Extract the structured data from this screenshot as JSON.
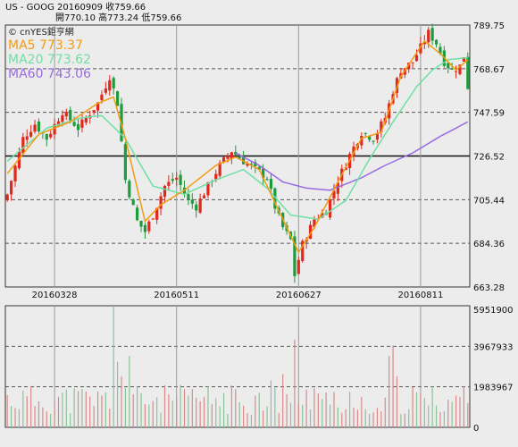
{
  "header": {
    "line1": "US - GOOG   20160909   收759.66",
    "line2": "開770.10   高773.24   低759.66",
    "logo": "© cnYES鉅亨網"
  },
  "legend": [
    {
      "label": "MA5 773.37",
      "color": "#f39c12"
    },
    {
      "label": "MA20 773.62",
      "color": "#6ee0a4"
    },
    {
      "label": "MA60 743.06",
      "color": "#9a6be0"
    }
  ],
  "colors": {
    "background": "#ececec",
    "up_candle": "#e0281c",
    "down_candle": "#1f9a3c",
    "volume_up": "#d98a8a",
    "volume_down": "#8cc29a",
    "grid_dashed": "#555555",
    "grid_light": "#9a9a9a"
  },
  "chart_data": [
    {
      "type": "candlestick",
      "title": "",
      "x_tick_labels": [
        "20160328",
        "20160511",
        "20160627",
        "20160811"
      ],
      "y_tick_labels": [
        "789.75",
        "768.67",
        "747.59",
        "726.52",
        "705.44",
        "684.36",
        "663.28"
      ],
      "ylim": [
        663.28,
        789.75
      ],
      "bar_count": 118,
      "x_tick_bar_index": [
        12,
        43,
        74,
        105
      ],
      "reference_line": 726.52,
      "series": [
        {
          "name": "MA5 773.37",
          "key": "ma5"
        },
        {
          "name": "MA20 773.62",
          "key": "ma20"
        },
        {
          "name": "MA60 743.06",
          "key": "ma60"
        }
      ],
      "candle_anchors": [
        {
          "i": 0,
          "c": 708
        },
        {
          "i": 4,
          "c": 735
        },
        {
          "i": 7,
          "c": 742
        },
        {
          "i": 10,
          "c": 735
        },
        {
          "i": 14,
          "c": 748
        },
        {
          "i": 18,
          "c": 740
        },
        {
          "i": 23,
          "c": 752
        },
        {
          "i": 26,
          "c": 765
        },
        {
          "i": 28,
          "c": 752
        },
        {
          "i": 30,
          "c": 715
        },
        {
          "i": 33,
          "c": 695
        },
        {
          "i": 35,
          "c": 690
        },
        {
          "i": 37,
          "c": 698
        },
        {
          "i": 40,
          "c": 712
        },
        {
          "i": 43,
          "c": 716
        },
        {
          "i": 46,
          "c": 705
        },
        {
          "i": 48,
          "c": 702
        },
        {
          "i": 51,
          "c": 712
        },
        {
          "i": 54,
          "c": 722
        },
        {
          "i": 57,
          "c": 729
        },
        {
          "i": 60,
          "c": 724
        },
        {
          "i": 63,
          "c": 720
        },
        {
          "i": 66,
          "c": 716
        },
        {
          "i": 68,
          "c": 702
        },
        {
          "i": 70,
          "c": 692
        },
        {
          "i": 72,
          "c": 686
        },
        {
          "i": 73,
          "c": 669
        },
        {
          "i": 75,
          "c": 684
        },
        {
          "i": 78,
          "c": 696
        },
        {
          "i": 81,
          "c": 700
        },
        {
          "i": 84,
          "c": 715
        },
        {
          "i": 87,
          "c": 727
        },
        {
          "i": 90,
          "c": 738
        },
        {
          "i": 93,
          "c": 735
        },
        {
          "i": 96,
          "c": 745
        },
        {
          "i": 98,
          "c": 758
        },
        {
          "i": 100,
          "c": 768
        },
        {
          "i": 103,
          "c": 772
        },
        {
          "i": 105,
          "c": 779
        },
        {
          "i": 107,
          "c": 786
        },
        {
          "i": 109,
          "c": 781
        },
        {
          "i": 111,
          "c": 772
        },
        {
          "i": 113,
          "c": 768
        },
        {
          "i": 115,
          "c": 770
        },
        {
          "i": 116,
          "c": 775
        },
        {
          "i": 117,
          "c": 760
        }
      ],
      "ma5_anchors": [
        {
          "i": 0,
          "v": 718
        },
        {
          "i": 8,
          "v": 737
        },
        {
          "i": 16,
          "v": 743
        },
        {
          "i": 23,
          "v": 752
        },
        {
          "i": 27,
          "v": 755
        },
        {
          "i": 30,
          "v": 735
        },
        {
          "i": 35,
          "v": 695
        },
        {
          "i": 39,
          "v": 703
        },
        {
          "i": 45,
          "v": 710
        },
        {
          "i": 53,
          "v": 722
        },
        {
          "i": 58,
          "v": 726
        },
        {
          "i": 64,
          "v": 720
        },
        {
          "i": 69,
          "v": 700
        },
        {
          "i": 74,
          "v": 680
        },
        {
          "i": 78,
          "v": 692
        },
        {
          "i": 84,
          "v": 714
        },
        {
          "i": 90,
          "v": 735
        },
        {
          "i": 95,
          "v": 738
        },
        {
          "i": 100,
          "v": 765
        },
        {
          "i": 106,
          "v": 782
        },
        {
          "i": 110,
          "v": 776
        },
        {
          "i": 114,
          "v": 768
        },
        {
          "i": 117,
          "v": 773
        }
      ],
      "ma20_anchors": [
        {
          "i": 0,
          "v": 724
        },
        {
          "i": 10,
          "v": 740
        },
        {
          "i": 19,
          "v": 745
        },
        {
          "i": 24,
          "v": 746
        },
        {
          "i": 30,
          "v": 735
        },
        {
          "i": 37,
          "v": 712
        },
        {
          "i": 45,
          "v": 708
        },
        {
          "i": 53,
          "v": 715
        },
        {
          "i": 60,
          "v": 720
        },
        {
          "i": 66,
          "v": 711
        },
        {
          "i": 72,
          "v": 698
        },
        {
          "i": 79,
          "v": 696
        },
        {
          "i": 86,
          "v": 705
        },
        {
          "i": 92,
          "v": 725
        },
        {
          "i": 98,
          "v": 743
        },
        {
          "i": 104,
          "v": 760
        },
        {
          "i": 108,
          "v": 768
        },
        {
          "i": 112,
          "v": 773
        },
        {
          "i": 117,
          "v": 774
        }
      ],
      "ma60_anchors": [
        {
          "i": 58,
          "v": 728
        },
        {
          "i": 64,
          "v": 722
        },
        {
          "i": 70,
          "v": 714
        },
        {
          "i": 76,
          "v": 711
        },
        {
          "i": 82,
          "v": 710
        },
        {
          "i": 90,
          "v": 716
        },
        {
          "i": 96,
          "v": 722
        },
        {
          "i": 103,
          "v": 728
        },
        {
          "i": 110,
          "v": 736
        },
        {
          "i": 117,
          "v": 743
        }
      ]
    },
    {
      "type": "bar",
      "title": "",
      "y_tick_labels": [
        "5951900",
        "3967933",
        "1983967",
        "0"
      ],
      "ylim": [
        0,
        5951900
      ],
      "bar_count": 118,
      "volume_peaks": [
        {
          "i": 27,
          "v": 5951900
        },
        {
          "i": 28,
          "v": 3200000
        },
        {
          "i": 31,
          "v": 3500000
        },
        {
          "i": 29,
          "v": 2500000
        },
        {
          "i": 73,
          "v": 4300000
        },
        {
          "i": 70,
          "v": 2600000
        },
        {
          "i": 97,
          "v": 3500000
        },
        {
          "i": 98,
          "v": 4000000
        },
        {
          "i": 99,
          "v": 2500000
        },
        {
          "i": 67,
          "v": 2300000
        },
        {
          "i": 115,
          "v": 1500000
        }
      ]
    }
  ]
}
